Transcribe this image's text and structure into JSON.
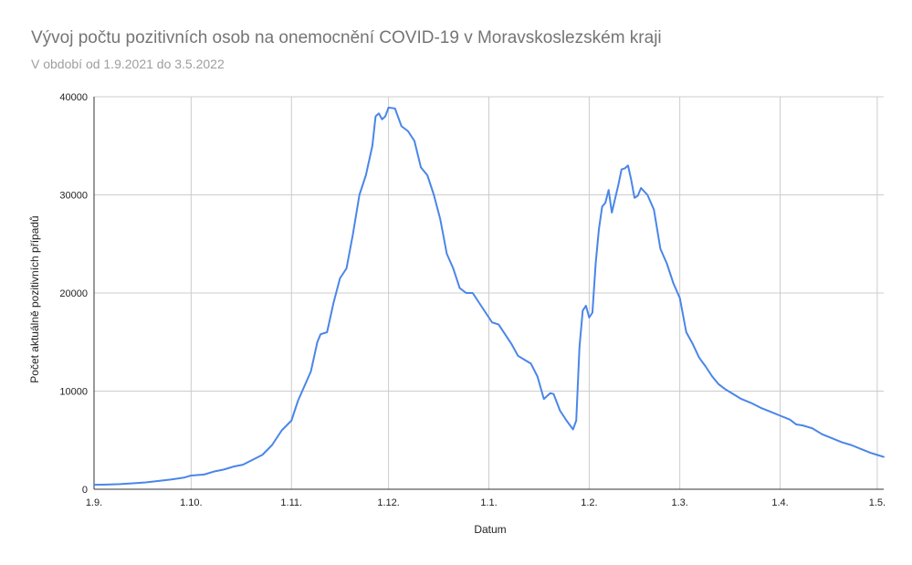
{
  "title": "Vývoj počtu pozitivních osob na onemocnění COVID-19 v Moravskoslezském kraji",
  "subtitle": "V období od 1.9.2021 do 3.5.2022",
  "colors": {
    "line": "#4a86e8",
    "grid": "#cccccc",
    "axis": "#333333",
    "title": "#757575",
    "subtitle": "#9e9e9e"
  },
  "chart_data": {
    "type": "line",
    "title": "Vývoj počtu pozitivních osob na onemocnění COVID-19 v Moravskoslezském kraji",
    "subtitle": "V období od 1.9.2021 do 3.5.2022",
    "xlabel": "Datum",
    "ylabel": "Počet aktuálně pozitivních případů",
    "ylim": [
      0,
      40000
    ],
    "xlim": [
      "2021-09-01",
      "2022-05-03"
    ],
    "grid": true,
    "legend": "none",
    "x_ticks": [
      {
        "date": "2021-09-01",
        "label": "1.9."
      },
      {
        "date": "2021-10-01",
        "label": "1.10."
      },
      {
        "date": "2021-11-01",
        "label": "1.11."
      },
      {
        "date": "2021-12-01",
        "label": "1.12."
      },
      {
        "date": "2022-01-01",
        "label": "1.1."
      },
      {
        "date": "2022-02-01",
        "label": "1.2."
      },
      {
        "date": "2022-03-01",
        "label": "1.3."
      },
      {
        "date": "2022-04-01",
        "label": "1.4."
      },
      {
        "date": "2022-05-01",
        "label": "1.5."
      }
    ],
    "y_ticks": [
      {
        "value": 0,
        "label": "0"
      },
      {
        "value": 10000,
        "label": "10000"
      },
      {
        "value": 20000,
        "label": "20000"
      },
      {
        "value": 30000,
        "label": "30000"
      },
      {
        "value": 40000,
        "label": "40000"
      }
    ],
    "series": [
      {
        "color": "#4a86e8",
        "points": [
          [
            "2021-09-01",
            450
          ],
          [
            "2021-09-05",
            480
          ],
          [
            "2021-09-09",
            520
          ],
          [
            "2021-09-13",
            600
          ],
          [
            "2021-09-17",
            700
          ],
          [
            "2021-09-21",
            850
          ],
          [
            "2021-09-25",
            1000
          ],
          [
            "2021-09-29",
            1200
          ],
          [
            "2021-10-01",
            1400
          ],
          [
            "2021-10-05",
            1500
          ],
          [
            "2021-10-08",
            1800
          ],
          [
            "2021-10-11",
            2000
          ],
          [
            "2021-10-14",
            2300
          ],
          [
            "2021-10-17",
            2500
          ],
          [
            "2021-10-20",
            3000
          ],
          [
            "2021-10-23",
            3500
          ],
          [
            "2021-10-26",
            4500
          ],
          [
            "2021-10-29",
            6000
          ],
          [
            "2021-11-01",
            7000
          ],
          [
            "2021-11-03",
            9000
          ],
          [
            "2021-11-05",
            10500
          ],
          [
            "2021-11-07",
            12000
          ],
          [
            "2021-11-09",
            15000
          ],
          [
            "2021-11-10",
            15800
          ],
          [
            "2021-11-12",
            16000
          ],
          [
            "2021-11-14",
            19000
          ],
          [
            "2021-11-16",
            21500
          ],
          [
            "2021-11-18",
            22500
          ],
          [
            "2021-11-20",
            26000
          ],
          [
            "2021-11-22",
            30000
          ],
          [
            "2021-11-24",
            32000
          ],
          [
            "2021-11-26",
            35000
          ],
          [
            "2021-11-27",
            38000
          ],
          [
            "2021-11-28",
            38300
          ],
          [
            "2021-11-29",
            37700
          ],
          [
            "2021-11-30",
            38000
          ],
          [
            "2021-12-01",
            38900
          ],
          [
            "2021-12-03",
            38800
          ],
          [
            "2021-12-05",
            37000
          ],
          [
            "2021-12-07",
            36500
          ],
          [
            "2021-12-09",
            35500
          ],
          [
            "2021-12-11",
            32800
          ],
          [
            "2021-12-13",
            32000
          ],
          [
            "2021-12-15",
            30000
          ],
          [
            "2021-12-17",
            27500
          ],
          [
            "2021-12-19",
            24000
          ],
          [
            "2021-12-21",
            22500
          ],
          [
            "2021-12-23",
            20500
          ],
          [
            "2021-12-25",
            20000
          ],
          [
            "2021-12-27",
            20000
          ],
          [
            "2021-12-29",
            19000
          ],
          [
            "2021-12-31",
            18000
          ],
          [
            "2022-01-02",
            17000
          ],
          [
            "2022-01-04",
            16800
          ],
          [
            "2022-01-06",
            15800
          ],
          [
            "2022-01-08",
            14800
          ],
          [
            "2022-01-10",
            13600
          ],
          [
            "2022-01-12",
            13200
          ],
          [
            "2022-01-14",
            12800
          ],
          [
            "2022-01-16",
            11500
          ],
          [
            "2022-01-18",
            9200
          ],
          [
            "2022-01-20",
            9800
          ],
          [
            "2022-01-21",
            9700
          ],
          [
            "2022-01-23",
            8000
          ],
          [
            "2022-01-25",
            7000
          ],
          [
            "2022-01-27",
            6100
          ],
          [
            "2022-01-28",
            7000
          ],
          [
            "2022-01-29",
            14500
          ],
          [
            "2022-01-30",
            18200
          ],
          [
            "2022-01-31",
            18700
          ],
          [
            "2022-02-01",
            17500
          ],
          [
            "2022-02-02",
            18000
          ],
          [
            "2022-02-03",
            23000
          ],
          [
            "2022-02-04",
            26500
          ],
          [
            "2022-02-05",
            28800
          ],
          [
            "2022-02-06",
            29200
          ],
          [
            "2022-02-07",
            30500
          ],
          [
            "2022-02-08",
            28200
          ],
          [
            "2022-02-10",
            31000
          ],
          [
            "2022-02-11",
            32600
          ],
          [
            "2022-02-12",
            32700
          ],
          [
            "2022-02-13",
            33000
          ],
          [
            "2022-02-14",
            31500
          ],
          [
            "2022-02-15",
            29700
          ],
          [
            "2022-02-16",
            29900
          ],
          [
            "2022-02-17",
            30700
          ],
          [
            "2022-02-19",
            30000
          ],
          [
            "2022-02-21",
            28500
          ],
          [
            "2022-02-23",
            24500
          ],
          [
            "2022-02-25",
            23000
          ],
          [
            "2022-02-27",
            21000
          ],
          [
            "2022-03-01",
            19500
          ],
          [
            "2022-03-03",
            16000
          ],
          [
            "2022-03-05",
            14800
          ],
          [
            "2022-03-07",
            13400
          ],
          [
            "2022-03-09",
            12500
          ],
          [
            "2022-03-11",
            11500
          ],
          [
            "2022-03-13",
            10700
          ],
          [
            "2022-03-15",
            10200
          ],
          [
            "2022-03-17",
            9800
          ],
          [
            "2022-03-20",
            9200
          ],
          [
            "2022-03-23",
            8800
          ],
          [
            "2022-03-26",
            8300
          ],
          [
            "2022-03-29",
            7900
          ],
          [
            "2022-04-01",
            7500
          ],
          [
            "2022-04-04",
            7100
          ],
          [
            "2022-04-06",
            6600
          ],
          [
            "2022-04-08",
            6500
          ],
          [
            "2022-04-11",
            6200
          ],
          [
            "2022-04-14",
            5600
          ],
          [
            "2022-04-17",
            5200
          ],
          [
            "2022-04-20",
            4800
          ],
          [
            "2022-04-23",
            4500
          ],
          [
            "2022-04-26",
            4100
          ],
          [
            "2022-04-29",
            3700
          ],
          [
            "2022-05-01",
            3500
          ],
          [
            "2022-05-03",
            3300
          ]
        ]
      }
    ]
  }
}
